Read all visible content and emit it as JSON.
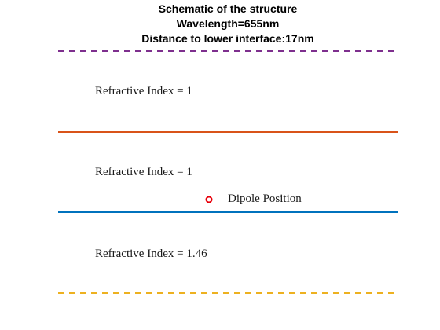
{
  "title": {
    "line1": "Schematic of the structure",
    "line2": "Wavelength=655nm",
    "line3": "Distance to lower interface:17nm"
  },
  "layers": [
    {
      "label": "Refractive Index = 1"
    },
    {
      "label": "Refractive Index = 1"
    },
    {
      "label": "Refractive Index = 1.46"
    }
  ],
  "dipole": {
    "label": "Dipole Position",
    "marker_color": "#e8000b"
  },
  "colors": {
    "top_boundary": "#7e2f8e",
    "upper_interface": "#d95319",
    "lower_interface": "#0072bd",
    "bottom_boundary": "#edb120"
  }
}
